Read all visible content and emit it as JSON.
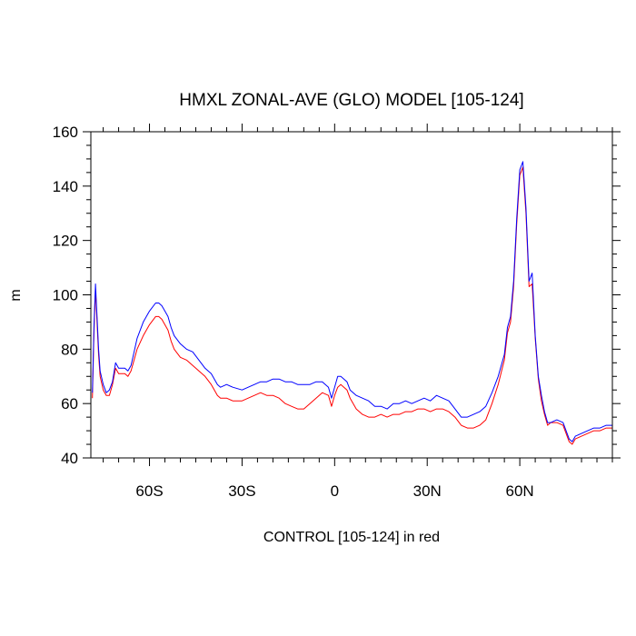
{
  "chart_data": {
    "type": "line",
    "title": "HMXL ZONAL-AVE (GLO) MODEL [105-124]",
    "xlabel": "CONTROL [105-124] in red",
    "ylabel": "m",
    "xlim": [
      -79,
      90
    ],
    "ylim": [
      40,
      160
    ],
    "y_ticks": [
      40,
      60,
      80,
      100,
      120,
      140,
      160
    ],
    "x_ticks": [
      {
        "value": -60,
        "label": "60S"
      },
      {
        "value": -30,
        "label": "30S"
      },
      {
        "value": 0,
        "label": "0"
      },
      {
        "value": 30,
        "label": "30N"
      },
      {
        "value": 60,
        "label": "60N"
      }
    ],
    "grid": false,
    "series": [
      {
        "color": "#0000ff",
        "x": [
          -78.5,
          -78,
          -77.5,
          -77,
          -76.5,
          -76,
          -75,
          -74,
          -73,
          -72,
          -71,
          -70,
          -69,
          -68,
          -67,
          -66,
          -65,
          -64,
          -62,
          -60,
          -58,
          -57,
          -56,
          -55,
          -54,
          -53,
          -52,
          -50,
          -48,
          -46,
          -44,
          -42,
          -40,
          -38,
          -37,
          -35,
          -33,
          -30,
          -28,
          -26,
          -24,
          -22,
          -20,
          -18,
          -16,
          -14,
          -12,
          -10,
          -8,
          -6,
          -4,
          -2,
          -1,
          0,
          1,
          2,
          3,
          4,
          5,
          7,
          9,
          11,
          13,
          15,
          17,
          19,
          21,
          23,
          25,
          27,
          29,
          31,
          33,
          35,
          37,
          39,
          41,
          43,
          45,
          47,
          49,
          51,
          53,
          55,
          56,
          57,
          58,
          59,
          60,
          61,
          62,
          63,
          64,
          65,
          66,
          67,
          68,
          69,
          70,
          72,
          74,
          76,
          77,
          78,
          80,
          82,
          84,
          86,
          88,
          90
        ],
        "values": [
          64,
          88,
          104,
          92,
          80,
          72,
          67,
          64,
          65,
          68,
          75,
          73,
          73,
          73,
          72,
          74,
          79,
          84,
          90,
          94,
          97,
          97,
          96,
          94,
          92,
          88,
          85,
          82,
          80,
          79,
          76,
          73,
          71,
          67,
          66,
          67,
          66,
          65,
          66,
          67,
          68,
          68,
          69,
          69,
          68,
          68,
          67,
          67,
          67,
          68,
          68,
          66,
          62,
          66,
          70,
          70,
          69,
          68,
          65,
          63,
          62,
          61,
          59,
          59,
          58,
          60,
          60,
          61,
          60,
          61,
          62,
          61,
          63,
          62,
          61,
          58,
          55,
          55,
          56,
          57,
          59,
          64,
          70,
          78,
          88,
          92,
          105,
          128,
          146,
          149,
          132,
          105,
          108,
          85,
          70,
          63,
          57,
          53,
          53,
          54,
          53,
          47,
          46,
          48,
          49,
          50,
          51,
          51,
          52,
          52
        ]
      },
      {
        "color": "#ff0000",
        "x": [
          -78.5,
          -78,
          -77.5,
          -77,
          -76.5,
          -76,
          -75,
          -74,
          -73,
          -72,
          -71,
          -70,
          -69,
          -68,
          -67,
          -66,
          -65,
          -64,
          -62,
          -60,
          -58,
          -57,
          -56,
          -55,
          -54,
          -53,
          -52,
          -50,
          -48,
          -46,
          -44,
          -42,
          -40,
          -38,
          -37,
          -35,
          -33,
          -30,
          -28,
          -26,
          -24,
          -22,
          -20,
          -18,
          -16,
          -14,
          -12,
          -10,
          -8,
          -6,
          -4,
          -2,
          -1,
          0,
          1,
          2,
          3,
          4,
          5,
          7,
          9,
          11,
          13,
          15,
          17,
          19,
          21,
          23,
          25,
          27,
          29,
          31,
          33,
          35,
          37,
          39,
          41,
          43,
          45,
          47,
          49,
          51,
          53,
          55,
          56,
          57,
          58,
          59,
          60,
          61,
          62,
          63,
          64,
          65,
          66,
          67,
          68,
          69,
          70,
          72,
          74,
          76,
          77,
          78,
          80,
          82,
          84,
          86,
          88,
          90
        ],
        "values": [
          62,
          86,
          102,
          90,
          78,
          70,
          65,
          63,
          63,
          67,
          73,
          71,
          71,
          71,
          70,
          72,
          76,
          80,
          85,
          89,
          92,
          92,
          91,
          89,
          87,
          83,
          80,
          77,
          76,
          74,
          72,
          70,
          67,
          63,
          62,
          62,
          61,
          61,
          62,
          63,
          64,
          63,
          63,
          62,
          60,
          59,
          58,
          58,
          60,
          62,
          64,
          63,
          59,
          63,
          66,
          67,
          66,
          65,
          62,
          58,
          56,
          55,
          55,
          56,
          55,
          56,
          56,
          57,
          57,
          58,
          58,
          57,
          58,
          58,
          57,
          55,
          52,
          51,
          51,
          52,
          54,
          60,
          67,
          76,
          86,
          90,
          103,
          126,
          144,
          147,
          130,
          103,
          104,
          84,
          69,
          61,
          56,
          52,
          53,
          53,
          52,
          46,
          45,
          47,
          48,
          49,
          50,
          50,
          51,
          51
        ]
      }
    ]
  }
}
